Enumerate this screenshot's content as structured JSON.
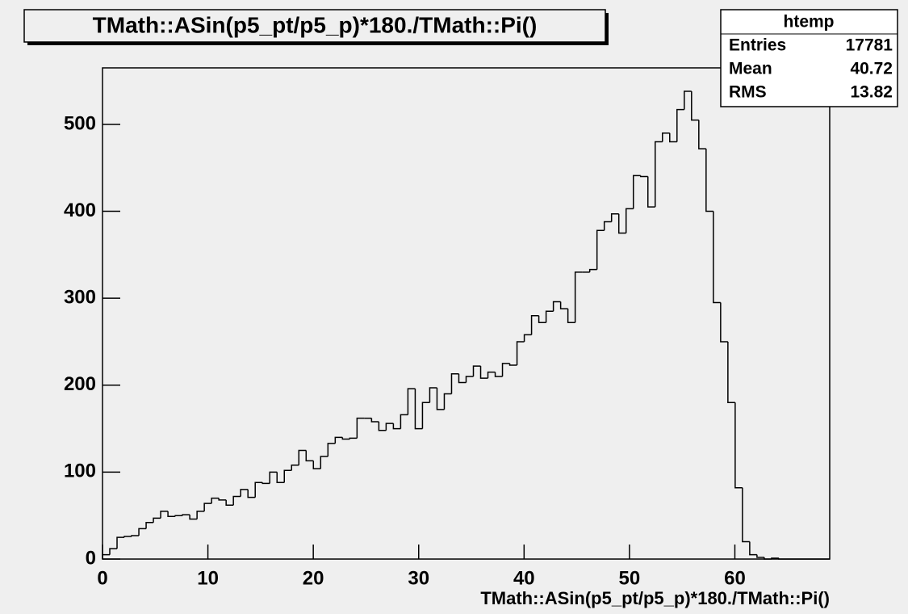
{
  "chart_data": {
    "type": "histogram",
    "title": "TMath::ASin(p5_pt/p5_p)*180./TMath::Pi()",
    "x_label": "TMath::ASin(p5_pt/p5_p)*180./TMath::Pi()",
    "stats": {
      "title": "htemp",
      "rows": [
        {
          "label": "Entries",
          "value": 17781
        },
        {
          "label": "Mean",
          "value": 40.72
        },
        {
          "label": "RMS",
          "value": 13.82
        }
      ]
    },
    "color": "#000000",
    "bins": [
      0,
      0.69,
      1.38,
      2.07,
      2.76,
      3.45,
      4.14,
      4.83,
      5.52,
      6.21,
      6.9,
      7.59,
      8.28,
      8.97,
      9.66,
      10.35,
      11.04,
      11.73,
      12.42,
      13.11,
      13.8,
      14.49,
      15.18,
      15.87,
      16.56,
      17.25,
      17.94,
      18.63,
      19.32,
      20.01,
      20.7,
      21.39,
      22.08,
      22.77,
      23.46,
      24.15,
      24.84,
      25.53,
      26.22,
      26.91,
      27.6,
      28.29,
      28.98,
      29.67,
      30.36,
      31.05,
      31.74,
      32.43,
      33.12,
      33.81,
      34.5,
      35.19,
      35.88,
      36.57,
      37.26,
      37.95,
      38.64,
      39.33,
      40.02,
      40.71,
      41.4,
      42.09,
      42.78,
      43.47,
      44.16,
      44.85,
      45.54,
      46.23,
      46.92,
      47.61,
      48.3,
      48.99,
      49.68,
      50.37,
      51.06,
      51.75,
      52.44,
      53.13,
      53.82,
      54.51,
      55.2,
      55.89,
      56.58,
      57.27,
      57.96,
      58.65,
      59.34,
      60.03,
      60.72,
      61.41,
      62.1,
      62.79,
      63.48,
      64.17,
      64.86,
      65.55,
      66.24,
      66.93,
      67.62,
      68.31,
      69
    ],
    "values": [
      5,
      12,
      25,
      26,
      27,
      35,
      42,
      47,
      55,
      49,
      50,
      51,
      46,
      55,
      64,
      70,
      68,
      62,
      72,
      80,
      71,
      88,
      87,
      100,
      88,
      102,
      108,
      125,
      113,
      104,
      118,
      133,
      140,
      138,
      139,
      162,
      162,
      158,
      148,
      156,
      150,
      166,
      196,
      150,
      180,
      197,
      172,
      190,
      213,
      203,
      210,
      222,
      208,
      215,
      210,
      225,
      223,
      250,
      258,
      280,
      272,
      285,
      296,
      288,
      272,
      330,
      330,
      333,
      378,
      388,
      397,
      375,
      403,
      441,
      440,
      405,
      480,
      490,
      480,
      517,
      538,
      505,
      472,
      400,
      295,
      250,
      180,
      82,
      20,
      5,
      2,
      0,
      1,
      0,
      0,
      0,
      0,
      0,
      0,
      0
    ],
    "xlim": [
      0,
      69
    ],
    "xticks": [
      0,
      10,
      20,
      30,
      40,
      50,
      60
    ],
    "ylim": [
      0,
      565
    ],
    "yticks": [
      0,
      100,
      200,
      300,
      400,
      500
    ]
  }
}
